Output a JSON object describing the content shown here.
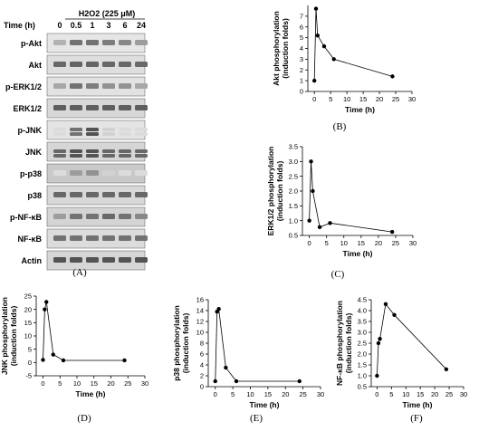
{
  "blot": {
    "treatment_label": "H2O2 (225 μM)",
    "time_header": "Time (h)",
    "time_points": [
      "0",
      "0.5",
      "1",
      "3",
      "6",
      "24"
    ],
    "rows": [
      "p-Akt",
      "Akt",
      "p-ERK1/2",
      "ERK1/2",
      "p-JNK",
      "JNK",
      "p-p38",
      "p38",
      "p-NF-κB",
      "NF-κB",
      "Actin"
    ],
    "panel_label": "(A)"
  },
  "chart_data": [
    {
      "id": "B",
      "type": "line",
      "panel_label": "(B)",
      "xlabel": "Time (h)",
      "ylabel": "Akt phosphorylation (induction folds)",
      "x": [
        0,
        0.5,
        1,
        3,
        6,
        24
      ],
      "y": [
        1.0,
        7.7,
        5.2,
        4.2,
        3.0,
        1.4
      ],
      "xlim": [
        -2,
        30
      ],
      "ylim": [
        0,
        8
      ],
      "xticks": [
        0,
        5,
        10,
        15,
        20,
        25,
        30
      ],
      "yticks": [
        0,
        1,
        2,
        3,
        4,
        5,
        6,
        7
      ]
    },
    {
      "id": "C",
      "type": "line",
      "panel_label": "(C)",
      "xlabel": "Time (h)",
      "ylabel": "ERK1/2 phosphorylation (induction folds)",
      "x": [
        0,
        0.5,
        1,
        3,
        6,
        24
      ],
      "y": [
        1.0,
        3.0,
        2.0,
        0.78,
        0.92,
        0.62
      ],
      "xlim": [
        -2,
        30
      ],
      "ylim": [
        0.5,
        3.5
      ],
      "xticks": [
        0,
        5,
        10,
        15,
        20,
        25,
        30
      ],
      "yticks": [
        0.5,
        1.0,
        1.5,
        2.0,
        2.5,
        3.0,
        3.5
      ]
    },
    {
      "id": "D",
      "type": "line",
      "panel_label": "(D)",
      "xlabel": "Time (h)",
      "ylabel": "JNK phosphorylation (induction folds)",
      "x": [
        0,
        0.5,
        1,
        3,
        6,
        24
      ],
      "y": [
        1.0,
        20.0,
        22.8,
        3.0,
        0.8,
        0.8
      ],
      "xlim": [
        -2,
        30
      ],
      "ylim": [
        -5,
        25
      ],
      "xticks": [
        0,
        5,
        10,
        15,
        20,
        25,
        30
      ],
      "yticks": [
        -5,
        0,
        5,
        10,
        15,
        20,
        25
      ]
    },
    {
      "id": "E",
      "type": "line",
      "panel_label": "(E)",
      "xlabel": "Time (h)",
      "ylabel": "p38 phosphorylation (induction folds)",
      "x": [
        0,
        0.5,
        1,
        3,
        6,
        24
      ],
      "y": [
        1.0,
        13.8,
        14.3,
        3.5,
        1.0,
        1.0
      ],
      "xlim": [
        -2,
        30
      ],
      "ylim": [
        0,
        16
      ],
      "xticks": [
        0,
        5,
        10,
        15,
        20,
        25,
        30
      ],
      "yticks": [
        0,
        2,
        4,
        6,
        8,
        10,
        12,
        14,
        16
      ]
    },
    {
      "id": "F",
      "type": "line",
      "panel_label": "(F)",
      "xlabel": "Time (h)",
      "ylabel": "NF-κB phosphorylation (induction folds)",
      "x": [
        0,
        0.5,
        1,
        3,
        6,
        24
      ],
      "y": [
        1.0,
        2.5,
        2.7,
        4.3,
        3.8,
        1.3
      ],
      "xlim": [
        -2,
        30
      ],
      "ylim": [
        0.5,
        4.5
      ],
      "xticks": [
        0,
        5,
        10,
        15,
        20,
        25,
        30
      ],
      "yticks": [
        0.5,
        1.0,
        1.5,
        2.0,
        2.5,
        3.0,
        3.5,
        4.0,
        4.5
      ]
    }
  ]
}
